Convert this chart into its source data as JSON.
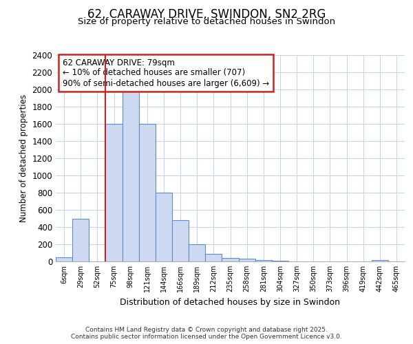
{
  "title_line1": "62, CARAWAY DRIVE, SWINDON, SN2 2RG",
  "title_line2": "Size of property relative to detached houses in Swindon",
  "xlabel": "Distribution of detached houses by size in Swindon",
  "ylabel": "Number of detached properties",
  "bin_labels": [
    "6sqm",
    "29sqm",
    "52sqm",
    "75sqm",
    "98sqm",
    "121sqm",
    "144sqm",
    "166sqm",
    "189sqm",
    "212sqm",
    "235sqm",
    "258sqm",
    "281sqm",
    "304sqm",
    "327sqm",
    "350sqm",
    "373sqm",
    "396sqm",
    "419sqm",
    "442sqm",
    "465sqm"
  ],
  "bar_heights": [
    50,
    500,
    0,
    1600,
    1980,
    1600,
    800,
    480,
    200,
    90,
    40,
    30,
    20,
    10,
    0,
    0,
    0,
    0,
    0,
    20,
    0
  ],
  "bar_color": "#ccd9f0",
  "bar_edge_color": "#5b8fcc",
  "vline_x_idx": 3,
  "vline_color": "#cc2222",
  "ylim": [
    0,
    2400
  ],
  "yticks": [
    0,
    200,
    400,
    600,
    800,
    1000,
    1200,
    1400,
    1600,
    1800,
    2000,
    2200,
    2400
  ],
  "annotation_title": "62 CARAWAY DRIVE: 79sqm",
  "annotation_line1": "← 10% of detached houses are smaller (707)",
  "annotation_line2": "90% of semi-detached houses are larger (6,609) →",
  "annotation_box_color": "#cc2222",
  "footer_line1": "Contains HM Land Registry data © Crown copyright and database right 2025.",
  "footer_line2": "Contains public sector information licensed under the Open Government Licence v3.0.",
  "bg_color": "#ffffff",
  "plot_bg_color": "#ffffff",
  "grid_color": "#c8d4e8"
}
